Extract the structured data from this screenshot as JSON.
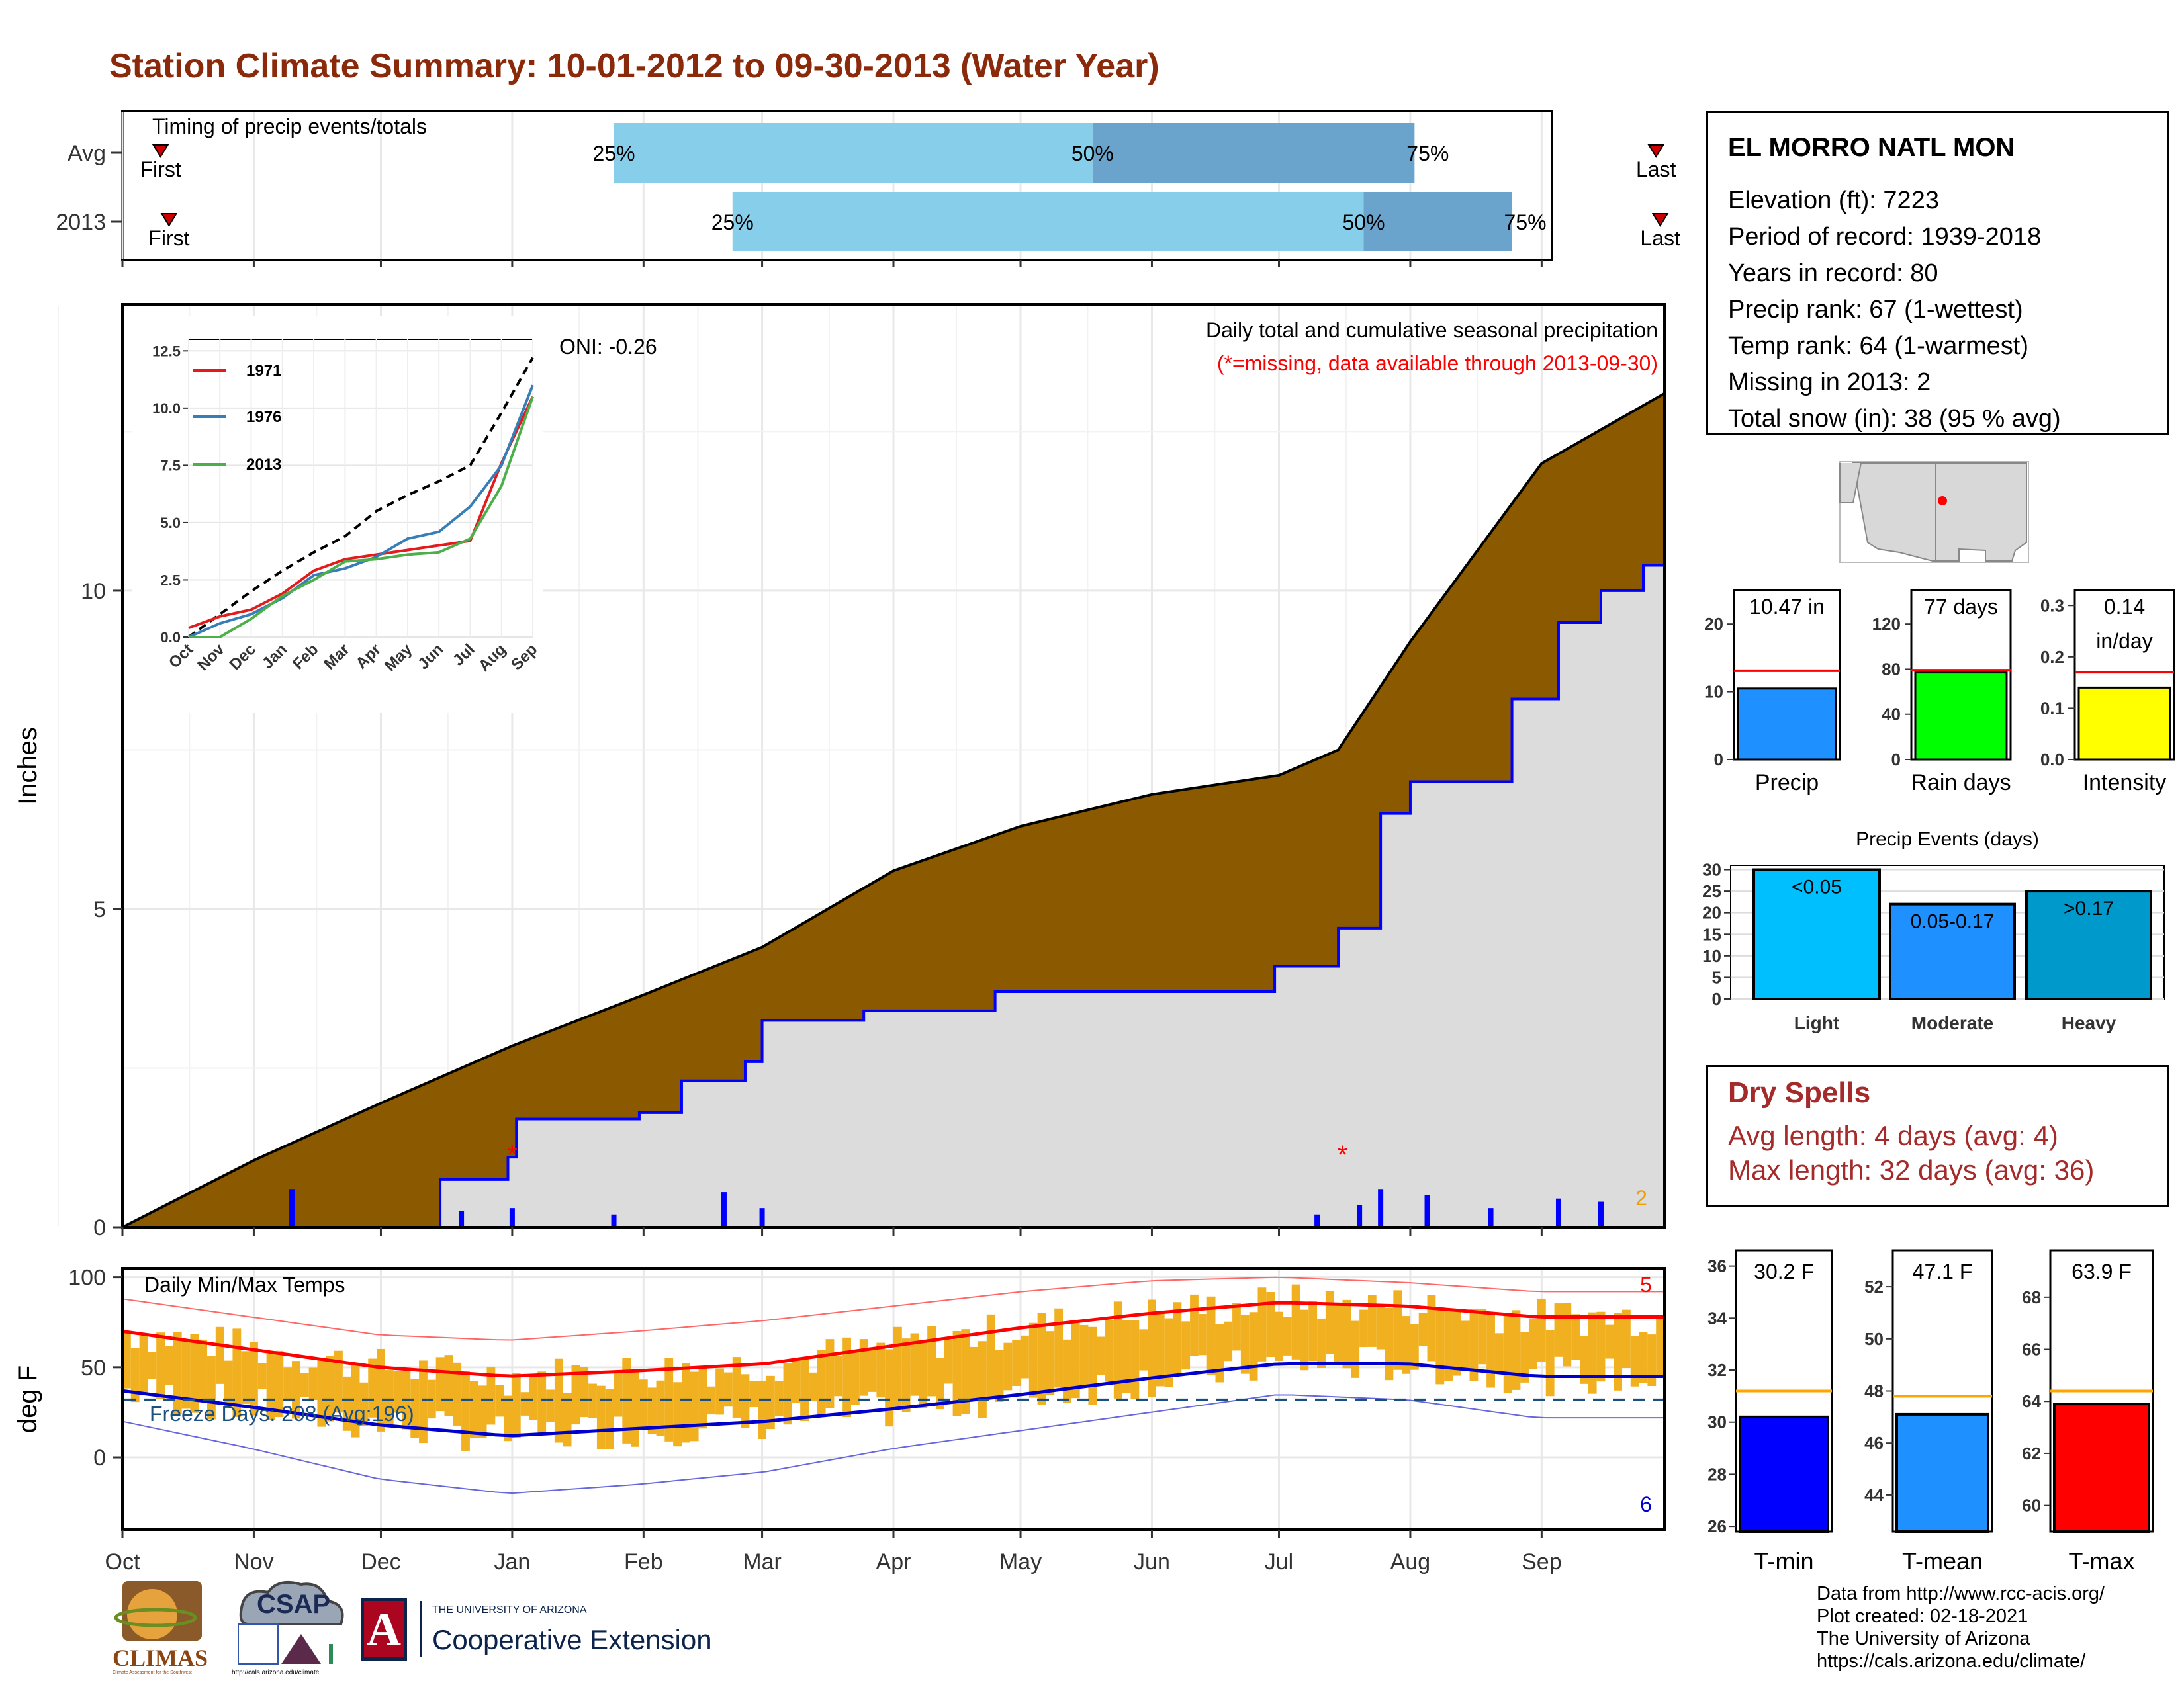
{
  "title": "Station Climate Summary: 10-01-2012 to 09-30-2013 (Water Year)",
  "station": {
    "name": "EL MORRO NATL MON",
    "lines": [
      "Elevation (ft): 7223",
      "Period of record: 1939-2018",
      "Years in record: 80",
      "Precip rank: 67 (1-wettest)",
      "Temp rank: 64 (1-warmest)",
      "Missing in 2013: 2",
      "Total snow (in): 38 (95 % avg)"
    ]
  },
  "dry_spells": {
    "heading": "Dry Spells",
    "avg": "Avg length: 4 days (avg: 4)",
    "max": "Max length: 32 days (avg: 36)"
  },
  "footer": [
    "Data from http://www.rcc-acis.org/",
    "Plot created: 02-18-2021",
    "The University of Arizona",
    "https://cals.arizona.edu/climate/"
  ],
  "logos": {
    "climas": "CLIMAS",
    "climas_sub": "Climate Assessment for the Southwest",
    "csap": "CSAP",
    "csap_url": "http://cals.arizona.edu/climate",
    "ua_small": "THE UNIVERSITY OF ARIZONA",
    "ua_big": "Cooperative Extension",
    "ua_letter": "A"
  },
  "colors": {
    "title": "#8b2a0a",
    "cumulative_avg": "#8b5a00",
    "cumulative_year": "#dcdcdc",
    "daily_precip": "#0000ff",
    "temp_bar": "#f0b020",
    "tmax_avg": "#ff0000",
    "tmin_avg": "#0000cd",
    "timing_light": "#87ceeb",
    "timing_dark": "#6aa3cc"
  },
  "chart_data": [
    {
      "type": "bar",
      "panel": "timing",
      "title": "Timing of precip events/totals",
      "categories": [
        "Avg",
        "2013"
      ],
      "x_ticks": [
        "Oct",
        "Nov",
        "Dec",
        "Jan",
        "Feb",
        "Mar",
        "Apr",
        "May",
        "Jun",
        "Jul",
        "Aug",
        "Sep"
      ],
      "rows": [
        {
          "label": "Avg",
          "first": "10-10",
          "p25": "01-25",
          "p50": "05-18",
          "p75": "08-02",
          "last": "09-28",
          "first_label": "First",
          "last_label": "Last"
        },
        {
          "label": "2013",
          "first": "10-12",
          "p25": "02-22",
          "p50": "07-21",
          "p75": "08-25",
          "last": "09-29",
          "first_label": "First",
          "last_label": "Last"
        }
      ],
      "pct_labels": [
        "25%",
        "50%",
        "75%"
      ]
    },
    {
      "type": "area",
      "panel": "precipitation",
      "title": "Daily total and cumulative seasonal precipitation",
      "note": "(*=missing, data available through 2013-09-30)",
      "ylabel": "Inches",
      "ylim": [
        0,
        14.5
      ],
      "y_ticks": [
        0,
        5,
        10
      ],
      "x_ticks": [
        "Oct",
        "Nov",
        "Dec",
        "Jan",
        "Feb",
        "Mar",
        "Apr",
        "May",
        "Jun",
        "Jul",
        "Aug",
        "Sep"
      ],
      "oni": "ONI: -0.26",
      "missing_count": "2",
      "missing_days": [
        "01-01",
        "07-16"
      ],
      "series": [
        {
          "name": "Average cumulative",
          "x": [
            "10-01",
            "11-01",
            "12-01",
            "01-01",
            "02-01",
            "03-01",
            "04-01",
            "05-01",
            "06-01",
            "07-01",
            "07-15",
            "08-01",
            "09-01",
            "09-30"
          ],
          "values": [
            0,
            1.05,
            1.95,
            2.85,
            3.65,
            4.4,
            5.6,
            6.3,
            6.8,
            7.1,
            7.5,
            9.2,
            12.0,
            13.1
          ]
        },
        {
          "name": "2013 cumulative",
          "x": [
            "10-01",
            "11-10",
            "12-15",
            "12-31",
            "01-02",
            "01-31",
            "02-10",
            "02-25",
            "03-01",
            "03-25",
            "04-25",
            "05-25",
            "06-30",
            "07-15",
            "07-25",
            "08-01",
            "08-25",
            "09-05",
            "09-15",
            "09-25",
            "09-30"
          ],
          "values": [
            0,
            0,
            0.75,
            1.1,
            1.7,
            1.8,
            2.3,
            2.6,
            3.25,
            3.4,
            3.7,
            3.7,
            4.1,
            4.7,
            6.5,
            7.0,
            8.3,
            9.5,
            10.0,
            10.4,
            10.47
          ]
        }
      ],
      "daily_precip": {
        "x": [
          "11-10",
          "12-20",
          "01-01",
          "01-25",
          "02-20",
          "03-01",
          "07-10",
          "07-20",
          "07-25",
          "08-05",
          "08-20",
          "09-05",
          "09-15"
        ],
        "values": [
          0.6,
          0.25,
          0.3,
          0.2,
          0.55,
          0.3,
          0.2,
          0.35,
          0.6,
          0.5,
          0.3,
          0.45,
          0.4
        ]
      }
    },
    {
      "type": "line",
      "panel": "inset",
      "categories": [
        "Oct",
        "Nov",
        "Dec",
        "Jan",
        "Feb",
        "Mar",
        "Apr",
        "May",
        "Jun",
        "Jul",
        "Aug",
        "Sep"
      ],
      "ylim": [
        0,
        13
      ],
      "y_ticks": [
        "0.0",
        "2.5",
        "5.0",
        "7.5",
        "10.0",
        "12.5"
      ],
      "series": [
        {
          "name": "Average",
          "values": [
            0.0,
            1.0,
            2.0,
            2.9,
            3.7,
            4.4,
            5.5,
            6.2,
            6.8,
            7.5,
            9.8,
            12.2
          ]
        },
        {
          "name": "1971",
          "values": [
            0.4,
            0.9,
            1.2,
            1.9,
            2.9,
            3.4,
            3.6,
            3.8,
            4.0,
            4.2,
            7.6,
            10.5
          ]
        },
        {
          "name": "1976",
          "values": [
            0.0,
            0.6,
            1.0,
            1.7,
            2.7,
            3.0,
            3.5,
            4.3,
            4.6,
            5.7,
            7.5,
            11.0
          ]
        },
        {
          "name": "2013",
          "values": [
            0.0,
            0.0,
            0.8,
            1.8,
            2.5,
            3.3,
            3.4,
            3.6,
            3.7,
            4.3,
            6.6,
            10.5
          ]
        }
      ]
    },
    {
      "type": "bar",
      "panel": "temperature",
      "title": "Daily Min/Max Temps",
      "ylabel": "deg F",
      "ylim": [
        -40,
        105
      ],
      "y_ticks": [
        0,
        50,
        100
      ],
      "x_ticks": [
        "Oct",
        "Nov",
        "Dec",
        "Jan",
        "Feb",
        "Mar",
        "Apr",
        "May",
        "Jun",
        "Jul",
        "Aug",
        "Sep"
      ],
      "freeze_days": "Freeze Days: 208 (Avg:196)",
      "freeze_line": 32,
      "record_high_count": "5",
      "record_low_count": "6",
      "series": [
        {
          "name": "Avg max",
          "x": [
            "Oct",
            "Nov",
            "Dec",
            "Jan",
            "Feb",
            "Mar",
            "Apr",
            "May",
            "Jun",
            "Jul",
            "Aug",
            "Sep"
          ],
          "values": [
            70,
            60,
            50,
            45,
            48,
            52,
            62,
            72,
            80,
            86,
            84,
            78
          ]
        },
        {
          "name": "Avg min",
          "x": [
            "Oct",
            "Nov",
            "Dec",
            "Jan",
            "Feb",
            "Mar",
            "Apr",
            "May",
            "Jun",
            "Jul",
            "Aug",
            "Sep"
          ],
          "values": [
            37,
            28,
            18,
            12,
            16,
            20,
            27,
            35,
            44,
            52,
            52,
            45
          ]
        },
        {
          "name": "Record max",
          "x": [
            "Oct",
            "Nov",
            "Dec",
            "Jan",
            "Feb",
            "Mar",
            "Apr",
            "May",
            "Jun",
            "Jul",
            "Aug",
            "Sep"
          ],
          "values": [
            88,
            78,
            68,
            65,
            70,
            76,
            84,
            92,
            98,
            100,
            97,
            92
          ]
        },
        {
          "name": "Record min",
          "x": [
            "Oct",
            "Nov",
            "Dec",
            "Jan",
            "Feb",
            "Mar",
            "Apr",
            "May",
            "Jun",
            "Jul",
            "Aug",
            "Sep"
          ],
          "values": [
            20,
            5,
            -12,
            -20,
            -15,
            -8,
            5,
            15,
            25,
            35,
            32,
            22
          ]
        }
      ]
    },
    {
      "type": "bar",
      "panel": "precip_totals",
      "categories": [
        "Precip",
        "Rain days",
        "Intensity"
      ],
      "values": [
        10.47,
        77,
        0.14
      ],
      "averages": [
        13.1,
        79,
        0.17
      ],
      "labels": [
        "10.47 in",
        "77 days",
        "0.14\nin/day"
      ],
      "ylims": [
        [
          0,
          25
        ],
        [
          0,
          150
        ],
        [
          0,
          0.33
        ]
      ],
      "y_ticks": [
        [
          "0",
          "10",
          "20"
        ],
        [
          "0",
          "40",
          "80",
          "120"
        ],
        [
          "0.0",
          "0.1",
          "0.2",
          "0.3"
        ]
      ]
    },
    {
      "type": "bar",
      "panel": "precip_events",
      "title": "Precip Events (days)",
      "categories": [
        "Light",
        "Moderate",
        "Heavy"
      ],
      "values": [
        30,
        22,
        25
      ],
      "labels": [
        "<0.05",
        "0.05-0.17",
        ">0.17"
      ],
      "ylim": [
        0,
        31
      ],
      "y_ticks": [
        "0",
        "5",
        "10",
        "15",
        "20",
        "25",
        "30"
      ]
    },
    {
      "type": "bar",
      "panel": "temp_totals",
      "categories": [
        "T-min",
        "T-mean",
        "T-max"
      ],
      "values": [
        30.2,
        47.1,
        63.9
      ],
      "averages": [
        31.2,
        47.8,
        64.4
      ],
      "labels": [
        "30.2 F",
        "47.1 F",
        "63.9 F"
      ],
      "ylims": [
        [
          25.8,
          36.6
        ],
        [
          42.6,
          53.4
        ],
        [
          59.0,
          69.8
        ]
      ],
      "y_ticks": [
        [
          "26",
          "28",
          "30",
          "32",
          "34",
          "36"
        ],
        [
          "44",
          "46",
          "48",
          "50",
          "52"
        ],
        [
          "60",
          "62",
          "64",
          "66",
          "68"
        ]
      ]
    }
  ]
}
